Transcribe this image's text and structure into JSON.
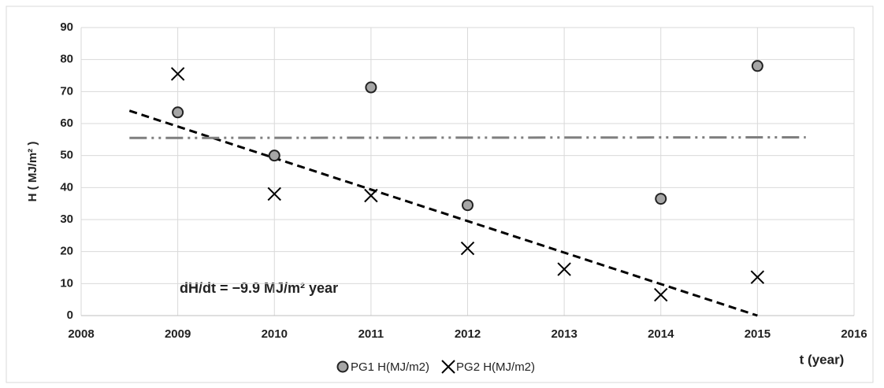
{
  "chart_data": {
    "type": "scatter",
    "x_label": "t (year)",
    "y_label": "H ( MJ/m² )",
    "annotation": "dH/dt = −9.9 MJ/m² year",
    "x": [
      2009,
      2010,
      2011,
      2012,
      2013,
      2014,
      2015
    ],
    "series": [
      {
        "name": "PG1 H(MJ/m2)",
        "color": "#a6a6a6",
        "marker": "circle",
        "values": [
          63.5,
          50,
          71.3,
          34.5,
          null,
          36.5,
          78
        ]
      },
      {
        "name": "PG2 H(MJ/m2)",
        "color": "#000000",
        "marker": "x",
        "values": [
          75.5,
          38,
          37.5,
          21,
          14.5,
          6.5,
          12
        ]
      }
    ],
    "lines": [
      {
        "x": [
          2008.5,
          2015
        ],
        "y": [
          64,
          0
        ],
        "color": "#000000",
        "style": "dashed"
      },
      {
        "x": [
          2008.5,
          2015.5
        ],
        "y": [
          55.5,
          55.7
        ],
        "color": "#7f7f7f",
        "style": "dashdotdot"
      }
    ],
    "xlim": [
      2008,
      2016
    ],
    "xticks": [
      2008,
      2009,
      2010,
      2011,
      2012,
      2013,
      2014,
      2015,
      2016
    ],
    "ylim": [
      0,
      90
    ],
    "yticks": [
      0,
      10,
      20,
      30,
      40,
      50,
      60,
      70,
      80,
      90
    ],
    "grid": true,
    "legend": "bottom"
  }
}
